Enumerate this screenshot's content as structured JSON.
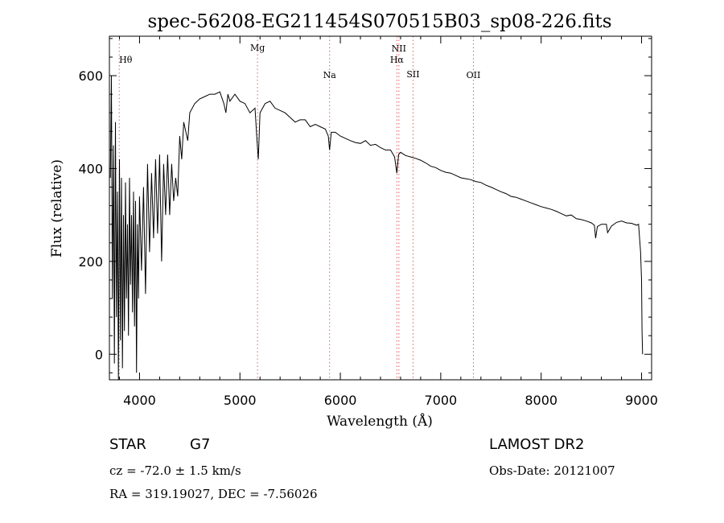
{
  "chart_data": {
    "type": "line",
    "title": "spec-56208-EG211454S070515B03_sp08-226.fits",
    "xlabel": "Wavelength (Å)",
    "ylabel": "Flux (relative)",
    "xlim": [
      3700,
      9100
    ],
    "ylim": [
      -55,
      685
    ],
    "x_ticks": [
      4000,
      5000,
      6000,
      7000,
      8000,
      9000
    ],
    "y_ticks": [
      0,
      200,
      400,
      600
    ],
    "grid": false,
    "line_color": "#000000",
    "marker_color": "#e06060",
    "lines": [
      {
        "label": "Hθ",
        "x": 3798
      },
      {
        "label": "Mg",
        "x": 5175
      },
      {
        "label": "Na",
        "x": 5893
      },
      {
        "label": "NII",
        "x": 6583
      },
      {
        "label": "Hα",
        "x": 6563
      },
      {
        "label": "SII",
        "x": 6724
      },
      {
        "label": "OII",
        "x": 7325
      }
    ],
    "series": [
      {
        "x": [
          3710,
          3720,
          3730,
          3740,
          3750,
          3760,
          3770,
          3780,
          3790,
          3800,
          3810,
          3820,
          3830,
          3840,
          3850,
          3860,
          3870,
          3880,
          3890,
          3900,
          3910,
          3920,
          3930,
          3940,
          3950,
          3960,
          3970,
          3980,
          3990,
          4000,
          4020,
          4040,
          4060,
          4080,
          4100,
          4120,
          4140,
          4160,
          4180,
          4200,
          4220,
          4240,
          4260,
          4280,
          4300,
          4320,
          4340,
          4360,
          4380,
          4400,
          4420,
          4440,
          4460,
          4480,
          4500,
          4550,
          4600,
          4650,
          4700,
          4750,
          4800,
          4840,
          4860,
          4880,
          4900,
          4950,
          5000,
          5050,
          5100,
          5150,
          5170,
          5183,
          5200,
          5250,
          5300,
          5350,
          5400,
          5450,
          5500,
          5550,
          5600,
          5650,
          5700,
          5750,
          5800,
          5850,
          5880,
          5893,
          5910,
          5950,
          6000,
          6050,
          6100,
          6150,
          6200,
          6250,
          6300,
          6350,
          6400,
          6450,
          6500,
          6540,
          6563,
          6580,
          6600,
          6650,
          6700,
          6750,
          6800,
          6850,
          6900,
          6950,
          7000,
          7050,
          7100,
          7150,
          7200,
          7250,
          7300,
          7350,
          7400,
          7450,
          7500,
          7550,
          7600,
          7650,
          7700,
          7750,
          7800,
          7850,
          7900,
          7950,
          8000,
          8050,
          8100,
          8150,
          8200,
          8250,
          8300,
          8350,
          8400,
          8450,
          8500,
          8530,
          8542,
          8560,
          8600,
          8650,
          8662,
          8700,
          8750,
          8800,
          8850,
          8900,
          8950,
          8970,
          8990,
          9000,
          9005,
          9010
        ],
        "values": [
          380,
          600,
          120,
          450,
          -20,
          500,
          80,
          350,
          -60,
          420,
          30,
          380,
          -30,
          300,
          50,
          370,
          120,
          280,
          40,
          380,
          150,
          300,
          90,
          350,
          60,
          330,
          -40,
          280,
          120,
          340,
          180,
          360,
          130,
          410,
          220,
          390,
          250,
          420,
          260,
          430,
          200,
          410,
          300,
          430,
          300,
          410,
          330,
          380,
          340,
          470,
          420,
          500,
          480,
          460,
          520,
          540,
          550,
          555,
          560,
          560,
          565,
          540,
          520,
          560,
          545,
          560,
          545,
          540,
          520,
          530,
          460,
          420,
          520,
          540,
          545,
          530,
          525,
          520,
          510,
          500,
          505,
          505,
          490,
          495,
          490,
          485,
          470,
          440,
          478,
          478,
          470,
          465,
          460,
          456,
          454,
          460,
          450,
          452,
          445,
          440,
          440,
          425,
          390,
          430,
          435,
          428,
          425,
          422,
          418,
          412,
          405,
          402,
          396,
          392,
          390,
          385,
          380,
          378,
          376,
          372,
          370,
          364,
          360,
          355,
          350,
          346,
          340,
          338,
          334,
          330,
          326,
          322,
          318,
          315,
          312,
          308,
          303,
          298,
          300,
          292,
          290,
          287,
          283,
          278,
          250,
          275,
          280,
          280,
          262,
          276,
          284,
          287,
          283,
          282,
          278,
          280,
          220,
          160,
          50,
          0
        ]
      }
    ]
  },
  "footer": {
    "left_line1_class": "STAR",
    "left_line1_subclass": "G7",
    "left_line2": "cz = -72.0 ± 1.5 km/s",
    "left_line3": "RA = 319.19027, DEC =  -7.56026",
    "right_line1": "LAMOST DR2",
    "right_line2": "Obs-Date: 20121007"
  }
}
